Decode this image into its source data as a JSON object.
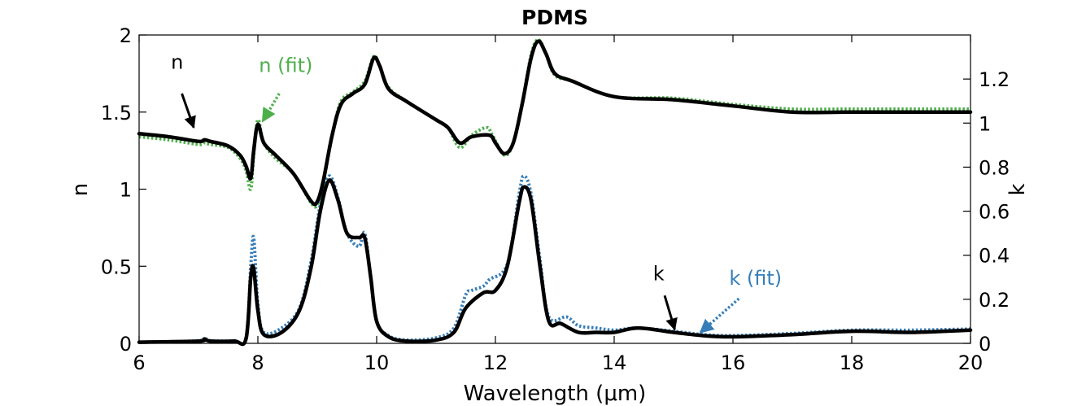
{
  "chart_data": {
    "type": "line",
    "title": "PDMS",
    "xlabel": "Wavelength (μm)",
    "ylabel_left": "n",
    "ylabel_right": "k",
    "xlim": [
      6,
      20
    ],
    "ylim_left": [
      0,
      2
    ],
    "ylim_right": [
      0,
      1.4
    ],
    "x_ticks": [
      6,
      8,
      10,
      12,
      14,
      16,
      18,
      20
    ],
    "x_tick_labels": [
      "6",
      "8",
      "10",
      "12",
      "14",
      "16",
      "18",
      "20"
    ],
    "y_left_ticks": [
      0,
      0.5,
      1,
      1.5,
      2
    ],
    "y_left_tick_labels": [
      "0",
      "0.5",
      "1",
      "1.5",
      "2"
    ],
    "y_right_ticks": [
      0,
      0.2,
      0.4,
      0.6,
      0.8,
      1,
      1.2
    ],
    "y_right_tick_labels": [
      "0",
      "0.2",
      "0.4",
      "0.6",
      "0.8",
      "1",
      "1.2"
    ],
    "grid": false,
    "colors": {
      "measured": "#000000",
      "n_fit": "#4daf4a",
      "k_fit": "#377eb8"
    },
    "series": [
      {
        "name": "n",
        "axis": "left",
        "style": "solid",
        "color": "#000000",
        "x": [
          6.0,
          6.5,
          7.0,
          7.1,
          7.2,
          7.5,
          7.7,
          7.8,
          7.88,
          7.93,
          8.0,
          8.1,
          8.3,
          8.6,
          8.9,
          9.0,
          9.1,
          9.25,
          9.4,
          9.6,
          9.8,
          9.95,
          10.05,
          10.2,
          10.5,
          11.0,
          11.2,
          11.4,
          11.6,
          11.9,
          12.0,
          12.15,
          12.3,
          12.45,
          12.6,
          12.72,
          12.85,
          13.0,
          13.3,
          14.0,
          15.0,
          16.0,
          17.0,
          18.0,
          20.0
        ],
        "values": [
          1.36,
          1.34,
          1.31,
          1.32,
          1.31,
          1.28,
          1.22,
          1.15,
          1.07,
          1.25,
          1.42,
          1.3,
          1.22,
          1.1,
          0.92,
          0.92,
          1.05,
          1.35,
          1.55,
          1.62,
          1.68,
          1.85,
          1.8,
          1.65,
          1.57,
          1.45,
          1.4,
          1.3,
          1.34,
          1.35,
          1.3,
          1.23,
          1.3,
          1.55,
          1.85,
          1.96,
          1.88,
          1.75,
          1.7,
          1.6,
          1.58,
          1.54,
          1.5,
          1.5,
          1.5
        ]
      },
      {
        "name": "n (fit)",
        "axis": "left",
        "style": "dotted",
        "color": "#4daf4a",
        "x": [
          6.0,
          6.5,
          7.0,
          7.1,
          7.2,
          7.5,
          7.7,
          7.8,
          7.88,
          7.93,
          8.0,
          8.1,
          8.3,
          8.6,
          8.9,
          9.0,
          9.1,
          9.25,
          9.4,
          9.6,
          9.8,
          9.95,
          10.05,
          10.2,
          10.5,
          11.0,
          11.2,
          11.4,
          11.6,
          11.85,
          11.95,
          12.15,
          12.3,
          12.45,
          12.6,
          12.72,
          12.85,
          13.0,
          13.3,
          14.0,
          15.0,
          16.0,
          17.0,
          18.0,
          20.0
        ],
        "values": [
          1.34,
          1.32,
          1.29,
          1.3,
          1.29,
          1.27,
          1.2,
          1.12,
          1.0,
          1.22,
          1.45,
          1.3,
          1.2,
          1.1,
          0.91,
          0.9,
          1.04,
          1.35,
          1.57,
          1.63,
          1.7,
          1.86,
          1.8,
          1.66,
          1.57,
          1.45,
          1.4,
          1.27,
          1.35,
          1.4,
          1.35,
          1.22,
          1.3,
          1.55,
          1.87,
          1.97,
          1.88,
          1.74,
          1.7,
          1.6,
          1.59,
          1.55,
          1.52,
          1.52,
          1.52
        ]
      },
      {
        "name": "k",
        "axis": "right",
        "style": "solid",
        "color": "#000000",
        "x": [
          6.0,
          7.0,
          7.1,
          7.2,
          7.6,
          7.8,
          7.88,
          7.93,
          8.0,
          8.1,
          8.4,
          8.7,
          8.9,
          9.05,
          9.2,
          9.35,
          9.5,
          9.7,
          9.8,
          9.9,
          10.0,
          10.2,
          10.5,
          11.0,
          11.3,
          11.5,
          11.8,
          12.0,
          12.2,
          12.4,
          12.48,
          12.6,
          12.75,
          12.9,
          13.1,
          13.4,
          13.7,
          14.0,
          14.4,
          15.0,
          15.5,
          16.0,
          17.0,
          18.0,
          19.0,
          20.0
        ],
        "values": [
          0.005,
          0.01,
          0.02,
          0.01,
          0.01,
          0.02,
          0.3,
          0.34,
          0.15,
          0.04,
          0.05,
          0.15,
          0.35,
          0.6,
          0.74,
          0.65,
          0.5,
          0.48,
          0.48,
          0.3,
          0.1,
          0.03,
          0.01,
          0.015,
          0.05,
          0.16,
          0.23,
          0.24,
          0.35,
          0.64,
          0.71,
          0.65,
          0.35,
          0.1,
          0.09,
          0.05,
          0.05,
          0.05,
          0.07,
          0.05,
          0.035,
          0.03,
          0.04,
          0.055,
          0.05,
          0.06
        ]
      },
      {
        "name": "k (fit)",
        "axis": "right",
        "style": "dotted",
        "color": "#377eb8",
        "x": [
          6.0,
          7.0,
          7.1,
          7.2,
          7.6,
          7.8,
          7.88,
          7.93,
          8.0,
          8.1,
          8.4,
          8.7,
          8.9,
          9.05,
          9.2,
          9.35,
          9.5,
          9.7,
          9.8,
          9.9,
          10.0,
          10.2,
          10.5,
          11.0,
          11.3,
          11.5,
          11.6,
          11.8,
          11.9,
          12.2,
          12.4,
          12.48,
          12.6,
          12.75,
          12.9,
          13.2,
          13.4,
          13.7,
          14.0,
          14.4,
          15.0,
          15.5,
          16.0,
          17.0,
          18.0,
          19.0,
          20.0
        ],
        "values": [
          0.005,
          0.012,
          0.025,
          0.012,
          0.012,
          0.025,
          0.35,
          0.48,
          0.18,
          0.05,
          0.07,
          0.16,
          0.38,
          0.63,
          0.76,
          0.66,
          0.5,
          0.44,
          0.5,
          0.3,
          0.1,
          0.035,
          0.015,
          0.025,
          0.07,
          0.22,
          0.24,
          0.26,
          0.29,
          0.36,
          0.68,
          0.76,
          0.68,
          0.38,
          0.12,
          0.12,
          0.08,
          0.07,
          0.06,
          0.07,
          0.055,
          0.04,
          0.035,
          0.045,
          0.06,
          0.06,
          0.065
        ]
      }
    ],
    "annotations": [
      {
        "text": "n",
        "color": "#000000",
        "style": "solid",
        "label_at": [
          6.64,
          1.78
        ],
        "arrow_from": [
          6.72,
          1.62
        ],
        "arrow_to": [
          6.92,
          1.4
        ]
      },
      {
        "text": "n (fit)",
        "color": "#4daf4a",
        "style": "dotted",
        "label_at": [
          8.47,
          1.76
        ],
        "arrow_from": [
          8.36,
          1.62
        ],
        "arrow_to": [
          8.08,
          1.44
        ]
      },
      {
        "text": "k",
        "color": "#000000",
        "style": "solid",
        "label_at": [
          14.75,
          0.41
        ],
        "arrow_from": [
          14.85,
          0.31
        ],
        "arrow_to": [
          15.02,
          0.09
        ]
      },
      {
        "text": "k (fit)",
        "color": "#377eb8",
        "style": "dotted",
        "label_at": [
          16.38,
          0.38
        ],
        "arrow_from": [
          16.1,
          0.29
        ],
        "arrow_to": [
          15.45,
          0.07
        ]
      }
    ]
  }
}
